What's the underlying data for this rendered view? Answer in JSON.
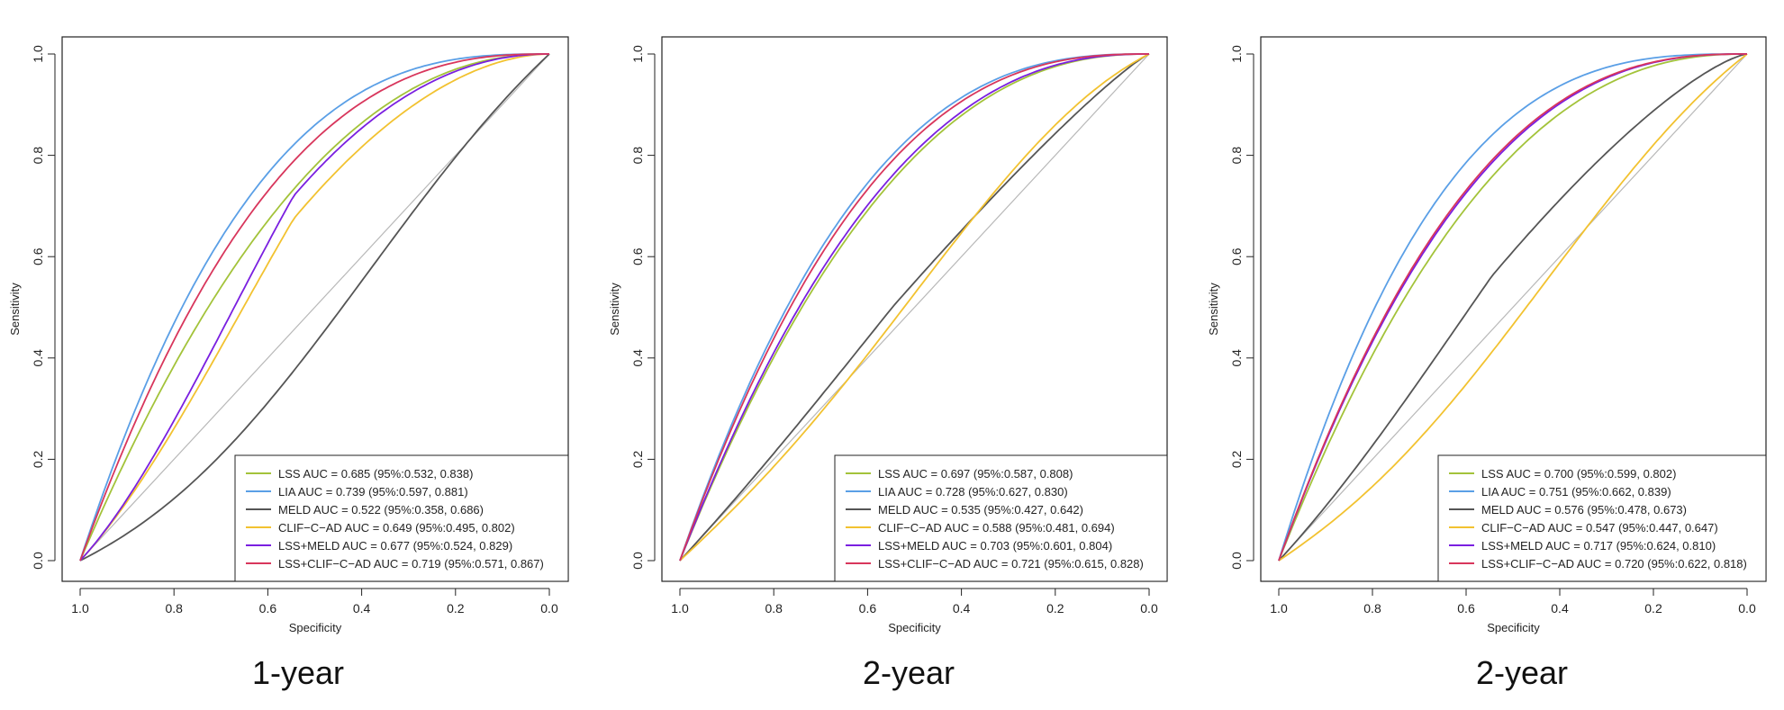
{
  "chart_data": [
    {
      "type": "line",
      "panel_caption": "1-year",
      "xlabel": "Specificity",
      "ylabel": "Sensitivity",
      "xlim": [
        1.0,
        0.0
      ],
      "ylim": [
        0.0,
        1.0
      ],
      "xticks": [
        "1.0",
        "0.8",
        "0.6",
        "0.4",
        "0.2",
        "0.0"
      ],
      "yticks": [
        "0.0",
        "0.2",
        "0.4",
        "0.6",
        "0.8",
        "1.0"
      ],
      "legend_position": "bottom-right",
      "series": [
        {
          "name": "LSS",
          "label": "LSS AUC = 0.685 (95%:0.532, 0.838)",
          "color": "#a3c33a",
          "auc": 0.685
        },
        {
          "name": "LIA",
          "label": "LIA AUC = 0.739 (95%:0.597, 0.881)",
          "color": "#5a9fe6",
          "auc": 0.739
        },
        {
          "name": "MELD",
          "label": "MELD AUC = 0.522 (95%:0.358, 0.686)",
          "color": "#555555",
          "auc": 0.522,
          "shape": "sigmoid"
        },
        {
          "name": "CLIF-C-AD",
          "label": "CLIF−C−AD AUC = 0.649 (95%:0.495, 0.802)",
          "color": "#f2c230",
          "auc": 0.649,
          "shape": "linear-start"
        },
        {
          "name": "LSS+MELD",
          "label": "LSS+MELD AUC = 0.677 (95%:0.524, 0.829)",
          "color": "#7a1fe0",
          "auc": 0.677,
          "shape": "linear-start"
        },
        {
          "name": "LSS+CLIF-C-AD",
          "label": "LSS+CLIF−C−AD AUC = 0.719 (95%:0.571, 0.867)",
          "color": "#d8365c",
          "auc": 0.719
        }
      ]
    },
    {
      "type": "line",
      "panel_caption": "2-year",
      "xlabel": "Specificity",
      "ylabel": "Sensitivity",
      "xlim": [
        1.0,
        0.0
      ],
      "ylim": [
        0.0,
        1.0
      ],
      "xticks": [
        "1.0",
        "0.8",
        "0.6",
        "0.4",
        "0.2",
        "0.0"
      ],
      "yticks": [
        "0.0",
        "0.2",
        "0.4",
        "0.6",
        "0.8",
        "1.0"
      ],
      "legend_position": "bottom-right",
      "series": [
        {
          "name": "LSS",
          "label": "LSS AUC = 0.697 (95%:0.587, 0.808)",
          "color": "#a3c33a",
          "auc": 0.697
        },
        {
          "name": "LIA",
          "label": "LIA AUC = 0.728 (95%:0.627, 0.830)",
          "color": "#5a9fe6",
          "auc": 0.728
        },
        {
          "name": "MELD",
          "label": "MELD AUC = 0.535 (95%:0.427, 0.642)",
          "color": "#555555",
          "auc": 0.535,
          "shape": "linear-start"
        },
        {
          "name": "CLIF-C-AD",
          "label": "CLIF−C−AD AUC = 0.588 (95%:0.481, 0.694)",
          "color": "#f2c230",
          "auc": 0.588,
          "shape": "sigmoid"
        },
        {
          "name": "LSS+MELD",
          "label": "LSS+MELD AUC = 0.703 (95%:0.601, 0.804)",
          "color": "#7a1fe0",
          "auc": 0.703
        },
        {
          "name": "LSS+CLIF-C-AD",
          "label": "LSS+CLIF−C−AD AUC = 0.721 (95%:0.615, 0.828)",
          "color": "#d8365c",
          "auc": 0.721
        }
      ]
    },
    {
      "type": "line",
      "panel_caption": "2-year",
      "xlabel": "Specificity",
      "ylabel": "Sensitivity",
      "xlim": [
        1.0,
        0.0
      ],
      "ylim": [
        0.0,
        1.0
      ],
      "xticks": [
        "1.0",
        "0.8",
        "0.6",
        "0.4",
        "0.2",
        "0.0"
      ],
      "yticks": [
        "0.0",
        "0.2",
        "0.4",
        "0.6",
        "0.8",
        "1.0"
      ],
      "legend_position": "bottom-right",
      "series": [
        {
          "name": "LSS",
          "label": "LSS AUC = 0.700 (95%:0.599, 0.802)",
          "color": "#a3c33a",
          "auc": 0.7
        },
        {
          "name": "LIA",
          "label": "LIA AUC = 0.751 (95%:0.662, 0.839)",
          "color": "#5a9fe6",
          "auc": 0.751
        },
        {
          "name": "MELD",
          "label": "MELD AUC = 0.576 (95%:0.478, 0.673)",
          "color": "#555555",
          "auc": 0.576,
          "shape": "linear-start"
        },
        {
          "name": "CLIF-C-AD",
          "label": "CLIF−C−AD AUC = 0.547 (95%:0.447, 0.647)",
          "color": "#f2c230",
          "auc": 0.547,
          "shape": "sigmoid"
        },
        {
          "name": "LSS+MELD",
          "label": "LSS+MELD AUC = 0.717 (95%:0.624, 0.810)",
          "color": "#7a1fe0",
          "auc": 0.717
        },
        {
          "name": "LSS+CLIF-C-AD",
          "label": "LSS+CLIF−C−AD AUC = 0.720 (95%:0.622, 0.818)",
          "color": "#d8365c",
          "auc": 0.72
        }
      ]
    }
  ]
}
